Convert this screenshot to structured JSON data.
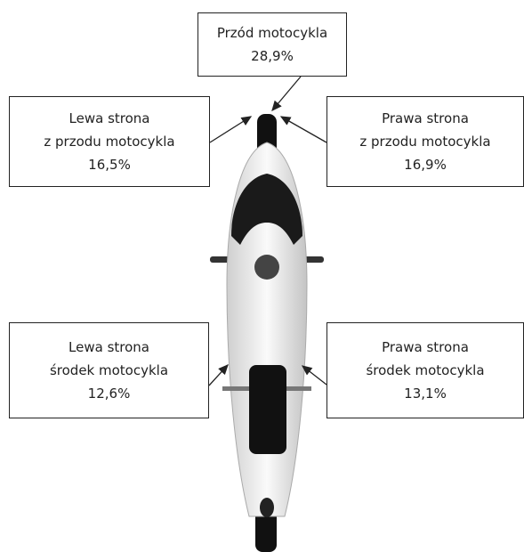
{
  "boxes": [
    {
      "lines": [
        "Przód motocykla"
      ],
      "value": "28,9%"
    },
    {
      "lines": [
        "Lewa strona",
        "z przodu motocykla"
      ],
      "value": "16,5%"
    },
    {
      "lines": [
        "Prawa strona",
        "z przodu motocykla"
      ],
      "value": "16,9%"
    },
    {
      "lines": [
        "Lewa strona",
        "środek motocykla"
      ],
      "value": "12,6%"
    },
    {
      "lines": [
        "Prawa strona",
        "środek motocykla"
      ],
      "value": "13,1%"
    }
  ]
}
